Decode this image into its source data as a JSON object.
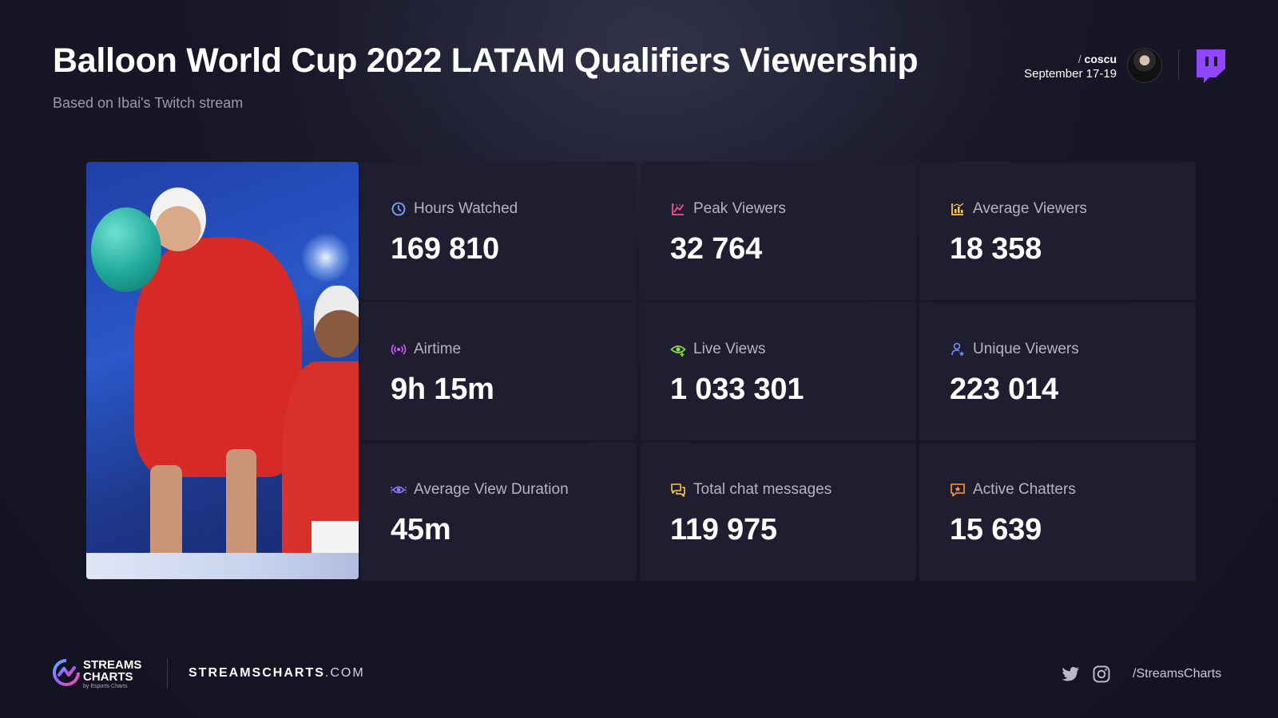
{
  "header": {
    "title": "Balloon World Cup 2022 LATAM Qualifiers Viewership",
    "subtitle": "Based on Ibai's Twitch stream",
    "streamer_prefix": "/",
    "streamer": "coscu",
    "dates": "September 17-19",
    "platform_icon": "twitch-icon"
  },
  "stats": [
    {
      "label": "Hours Watched",
      "value": "169 810",
      "icon": "clock-icon",
      "color": "#7aa8ff"
    },
    {
      "label": "Peak Viewers",
      "value": "32 764",
      "icon": "peak-chart-icon",
      "color": "#ff4f8b"
    },
    {
      "label": "Average Viewers",
      "value": "18 358",
      "icon": "average-chart-icon",
      "color": "#ffc93a"
    },
    {
      "label": "Airtime",
      "value": "9h 15m",
      "icon": "broadcast-icon",
      "color": "#d75cff"
    },
    {
      "label": "Live Views",
      "value": "1 033 301",
      "icon": "eye-plus-icon",
      "color": "#8fe04a"
    },
    {
      "label": "Unique Viewers",
      "value": "223 014",
      "icon": "user-star-icon",
      "color": "#6f8cff"
    },
    {
      "label": "Average View Duration",
      "value": "45m",
      "icon": "view-duration-icon",
      "color": "#8f7bff"
    },
    {
      "label": "Total chat messages",
      "value": "119 975",
      "icon": "chat-icon",
      "color": "#ffc93a"
    },
    {
      "label": "Active Chatters",
      "value": "15 639",
      "icon": "chat-star-icon",
      "color": "#ff9a3a"
    }
  ],
  "footer": {
    "brand_line1": "STREAMS",
    "brand_line2": "CHARTS",
    "brand_by": "by Esports Charts",
    "site_name": "STREAMSCHARTS",
    "site_tld": ".COM",
    "handle": "/StreamsCharts"
  }
}
